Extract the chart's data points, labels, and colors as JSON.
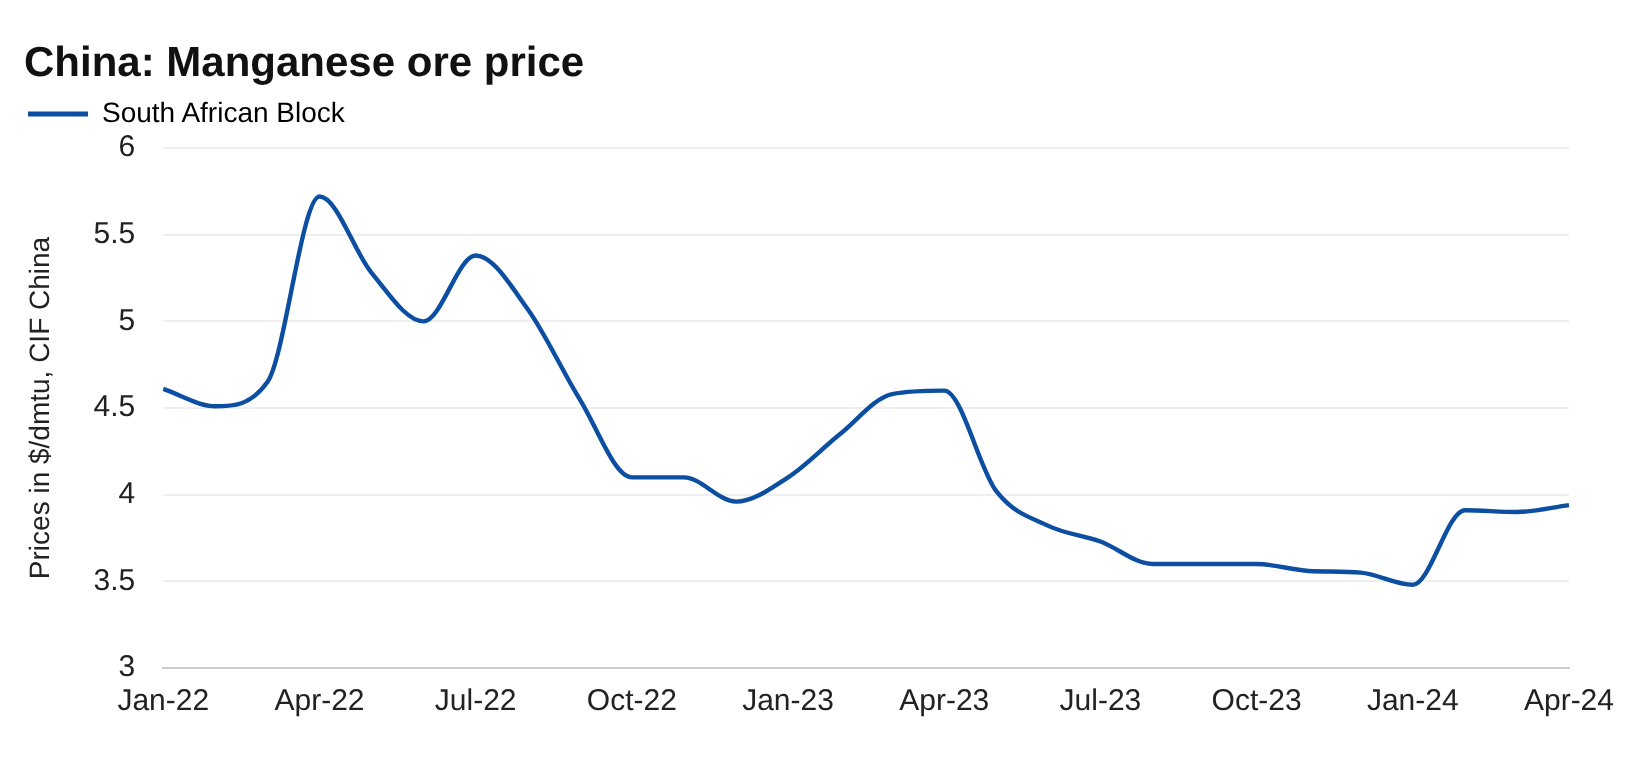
{
  "chart_data": {
    "type": "line",
    "title": "China: Manganese ore price",
    "ylabel": "Prices in $/dmtu, CIF China",
    "categories": [
      "Jan-22",
      null,
      null,
      "Apr-22",
      null,
      null,
      "Jul-22",
      null,
      null,
      "Oct-22",
      null,
      null,
      "Jan-23",
      null,
      null,
      "Apr-23",
      null,
      null,
      "Jul-23",
      null,
      null,
      "Oct-23",
      null,
      null,
      "Jan-24",
      null,
      null,
      "Apr-24"
    ],
    "series": [
      {
        "name": "South African Block",
        "color": "#0b4ea2",
        "values": [
          4.61,
          4.51,
          4.65,
          5.72,
          5.28,
          5.0,
          5.38,
          5.07,
          4.55,
          4.1,
          4.1,
          3.96,
          4.1,
          4.35,
          4.58,
          4.6,
          4.02,
          3.82,
          3.73,
          3.6,
          3.6,
          3.6,
          3.56,
          3.55,
          3.48,
          3.91,
          3.9,
          3.94
        ]
      }
    ],
    "ylim": [
      3,
      6
    ],
    "yticks": [
      3,
      3.5,
      4,
      4.5,
      5,
      5.5,
      6
    ],
    "grid": "y",
    "legend": "top left",
    "marker": "none",
    "line_style": "solid"
  }
}
